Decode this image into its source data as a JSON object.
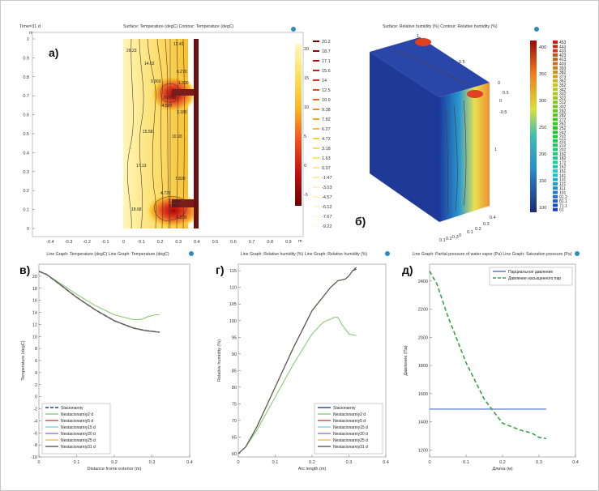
{
  "panel_letters": {
    "a": "а)",
    "b": "б)",
    "v": "в)",
    "g": "г)",
    "d": "д)"
  },
  "panel_a": {
    "time_label": "Time=31 d",
    "title": "Surface: Temperature (degC)  Contour: Temperature (degC)",
    "axis_unit": "m",
    "x_ticks": [
      "-0.4",
      "-0.3",
      "-0.2",
      "-0.1",
      "0",
      "0.1",
      "0.2",
      "0.3",
      "0.4",
      "0.5",
      "0.6",
      "0.7",
      "0.8",
      "0.9"
    ],
    "y_ticks": [
      "1",
      "0.9",
      "0.8",
      "0.7",
      "0.6",
      "0.5",
      "0.4",
      "0.3",
      "0.2",
      "0.1",
      "0"
    ],
    "colorbar1": [
      "20",
      "15",
      "10",
      "5",
      "0",
      "-5"
    ],
    "colorbar2": [
      "20.2",
      "18.7",
      "17.1",
      "15.6",
      "14",
      "12.5",
      "10.9",
      "9.38",
      "7.82",
      "6.27",
      "4.72",
      "3.18",
      "1.63",
      "0.07",
      "-1.47",
      "-3.03",
      "-4.57",
      "-6.12",
      "-7.67",
      "-9.22"
    ],
    "contour_labels": [
      "20.23",
      "14.02",
      "9.360",
      "12.41",
      "6.270",
      "1.330",
      "0.0780",
      "-4.520",
      "3.180",
      "15.58",
      "10.93",
      "17.13",
      "7.820",
      "4.720",
      "1.630",
      "0.800",
      "18.68",
      "-6.570"
    ]
  },
  "panel_b": {
    "title": "Surface: Relative humidity (%)  Contour: Relative humidity (%)",
    "colorbar1": [
      "400",
      "350",
      "300",
      "250",
      "200",
      "150",
      "100"
    ],
    "colorbar2": [
      "453",
      "443",
      "433",
      "423",
      "413",
      "403",
      "393",
      "382",
      "373",
      "362",
      "352",
      "342",
      "332",
      "322",
      "312",
      "302",
      "292",
      "282",
      "272",
      "262",
      "252",
      "242",
      "232",
      "222",
      "212",
      "202",
      "192",
      "182",
      "172",
      "162",
      "151",
      "141",
      "131",
      "121",
      "111",
      "101",
      "91.2",
      "81.1",
      "71.1",
      "61"
    ],
    "axis_labels": [
      "1",
      "0.5",
      "0",
      "0.5",
      "0",
      "-0.5",
      "1",
      "0.4",
      "0.3",
      "0.2",
      "0.1",
      "0",
      "0.3",
      "0.2",
      "0.1"
    ]
  },
  "chart_data": [
    {
      "type": "line",
      "title": "Line Graph: Temperature (degC)  Line Graph: Temperature (degC)",
      "xlabel": "Distance frome exterior (m)",
      "ylabel": "Temperature (degC)",
      "xlim": [
        0,
        0.4
      ],
      "ylim": [
        -10,
        22
      ],
      "x_ticks": [
        "0",
        "0.1",
        "0.2",
        "0.3",
        "0.4"
      ],
      "y_ticks": [
        "20",
        "18",
        "16",
        "14",
        "12",
        "10",
        "8",
        "6",
        "4",
        "2",
        "0",
        "-2",
        "-4",
        "-6",
        "-8",
        "-10"
      ],
      "legend_position": "bottom-left",
      "series": [
        {
          "name": "Stacionarniy",
          "color": "#2a3d8f",
          "dash": true,
          "x": [
            0,
            0.02,
            0.05,
            0.1,
            0.15,
            0.2,
            0.25,
            0.28,
            0.32
          ],
          "y": [
            20.8,
            20.3,
            18.9,
            16.5,
            14.4,
            12.6,
            11.4,
            11.0,
            10.7
          ]
        },
        {
          "name": "Nestacionarniy2 d",
          "color": "#8cc87a",
          "x": [
            0,
            0.02,
            0.05,
            0.1,
            0.15,
            0.2,
            0.25,
            0.27,
            0.29,
            0.31,
            0.32
          ],
          "y": [
            20.8,
            20.3,
            19.1,
            17.0,
            15.1,
            13.6,
            12.8,
            12.8,
            13.3,
            13.6,
            13.6
          ]
        },
        {
          "name": "Nestacionarniy5 d",
          "color": "#c0504d",
          "x": [
            0,
            0.02,
            0.05,
            0.1,
            0.15,
            0.2,
            0.25,
            0.28,
            0.32
          ],
          "y": [
            20.8,
            20.3,
            18.9,
            16.5,
            14.4,
            12.6,
            11.4,
            11.0,
            10.7
          ]
        },
        {
          "name": "Nestacionarniy15 d",
          "color": "#7fd0e0",
          "x": [
            0,
            0.02,
            0.05,
            0.1,
            0.15,
            0.2,
            0.25,
            0.28,
            0.32
          ],
          "y": [
            20.8,
            20.3,
            18.9,
            16.5,
            14.4,
            12.6,
            11.4,
            11.0,
            10.7
          ]
        },
        {
          "name": "Nestacionarniy20 d",
          "color": "#9b7bc4",
          "x": [
            0,
            0.02,
            0.05,
            0.1,
            0.15,
            0.2,
            0.25,
            0.28,
            0.32
          ],
          "y": [
            20.8,
            20.3,
            18.9,
            16.5,
            14.4,
            12.6,
            11.4,
            11.0,
            10.7
          ]
        },
        {
          "name": "Nestacionarniy25 d",
          "color": "#e8c040",
          "x": [
            0,
            0.02,
            0.05,
            0.1,
            0.15,
            0.2,
            0.25,
            0.28,
            0.32
          ],
          "y": [
            20.8,
            20.3,
            18.9,
            16.5,
            14.4,
            12.6,
            11.4,
            11.0,
            10.7
          ]
        },
        {
          "name": "Nestacionarniy31 d",
          "color": "#555555",
          "x": [
            0,
            0.02,
            0.05,
            0.1,
            0.15,
            0.2,
            0.25,
            0.28,
            0.32
          ],
          "y": [
            20.8,
            20.3,
            18.9,
            16.5,
            14.4,
            12.6,
            11.4,
            11.0,
            10.7
          ]
        }
      ]
    },
    {
      "type": "line",
      "title": "Line Graph: Relative humidity (%)  Line Graph: Relative humidity (%)",
      "xlabel": "Arc length (m)",
      "ylabel": "Relative humidity (%)",
      "xlim": [
        0,
        0.4
      ],
      "ylim": [
        59,
        117
      ],
      "x_ticks": [
        "0",
        "0.1",
        "0.2",
        "0.3",
        "0.4"
      ],
      "y_ticks": [
        "115",
        "110",
        "105",
        "100",
        "95",
        "90",
        "85",
        "80",
        "75",
        "70",
        "65",
        "60"
      ],
      "legend_position": "bottom-right",
      "series": [
        {
          "name": "Stacionarniy",
          "color": "#2a3d8f",
          "x": [
            0,
            0.02,
            0.05,
            0.1,
            0.15,
            0.2,
            0.25,
            0.27,
            0.29,
            0.3,
            0.31,
            0.32
          ],
          "y": [
            60,
            62,
            68,
            80,
            92,
            103,
            110,
            112,
            112.5,
            113.5,
            115,
            115.5
          ]
        },
        {
          "name": "Nestacionarniy2 d",
          "color": "#8cc87a",
          "x": [
            0,
            0.02,
            0.05,
            0.1,
            0.15,
            0.2,
            0.23,
            0.26,
            0.27,
            0.28,
            0.3,
            0.32
          ],
          "y": [
            60,
            62,
            67,
            77,
            87,
            96,
            99.5,
            101,
            101,
            99,
            96,
            95.5
          ]
        },
        {
          "name": "Nestacionarniy5 d",
          "color": "#c0504d",
          "x": [
            0,
            0.02,
            0.05,
            0.1,
            0.15,
            0.2,
            0.25,
            0.27,
            0.29,
            0.3,
            0.31,
            0.32
          ],
          "y": [
            60,
            62,
            68,
            80,
            92,
            103,
            110,
            112,
            112.5,
            113.5,
            115,
            116
          ]
        },
        {
          "name": "Nestacionarniy15 d",
          "color": "#7fd0e0",
          "x": [
            0,
            0.02,
            0.05,
            0.1,
            0.15,
            0.2,
            0.25,
            0.27,
            0.29,
            0.3,
            0.31,
            0.32
          ],
          "y": [
            60,
            62,
            68,
            80,
            92,
            103,
            110,
            112,
            112.5,
            113.5,
            115,
            116
          ]
        },
        {
          "name": "Nestacionarniy20 d",
          "color": "#9b7bc4",
          "x": [
            0,
            0.02,
            0.05,
            0.1,
            0.15,
            0.2,
            0.25,
            0.27,
            0.29,
            0.3,
            0.31,
            0.32
          ],
          "y": [
            60,
            62,
            68,
            80,
            92,
            103,
            110,
            112,
            112.5,
            113.5,
            115,
            116
          ]
        },
        {
          "name": "Nestacionarniy25 d",
          "color": "#e8c040",
          "x": [
            0,
            0.02,
            0.05,
            0.1,
            0.15,
            0.2,
            0.25,
            0.27,
            0.29,
            0.3,
            0.31,
            0.32
          ],
          "y": [
            60,
            62,
            68,
            80,
            92,
            103,
            110,
            112,
            112.5,
            113.5,
            115,
            116
          ]
        },
        {
          "name": "Nestacionarniy31 d",
          "color": "#555555",
          "x": [
            0,
            0.02,
            0.05,
            0.1,
            0.15,
            0.2,
            0.25,
            0.27,
            0.29,
            0.3,
            0.31,
            0.32
          ],
          "y": [
            60,
            62,
            68,
            80,
            92,
            103,
            110,
            112,
            112.5,
            113.5,
            115,
            116
          ]
        }
      ]
    },
    {
      "type": "line",
      "title": "Line Graph: Partial pressure of water vapor (Pa)  Line Graph: Saturation pressure (Pa)",
      "xlabel": "Длина (м)",
      "ylabel": "Давление (Па)",
      "xlim": [
        0,
        0.4
      ],
      "ylim": [
        1150,
        2520
      ],
      "x_ticks": [
        "0",
        "0.1",
        "0.2",
        "0.3",
        "0.4"
      ],
      "y_ticks": [
        "2400",
        "2200",
        "2000",
        "1800",
        "1600",
        "1400",
        "1200"
      ],
      "legend_position": "top-right",
      "series": [
        {
          "name": "Парциальное давление",
          "color": "#4a72c4",
          "x": [
            0,
            0.32
          ],
          "y": [
            1490,
            1490
          ]
        },
        {
          "name": "Давление насыщенного пар",
          "color": "#3aa04a",
          "dash": true,
          "x": [
            0,
            0.02,
            0.05,
            0.1,
            0.15,
            0.2,
            0.25,
            0.28,
            0.3,
            0.32
          ],
          "y": [
            2470,
            2380,
            2150,
            1820,
            1560,
            1390,
            1340,
            1320,
            1290,
            1280
          ]
        }
      ]
    }
  ]
}
